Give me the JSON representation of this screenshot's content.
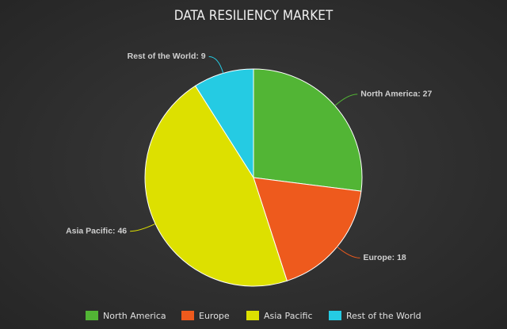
{
  "chart_data": {
    "type": "pie",
    "title": "DATA RESILIENCY MARKET",
    "categories": [
      "North America",
      "Europe",
      "Asia Pacific",
      "Rest of the World"
    ],
    "values": [
      27,
      18,
      46,
      9
    ],
    "value_labels": [
      "North America: 27",
      "Europe: 18",
      "Asia Pacific: 46",
      "Rest of the World: 9"
    ],
    "colors": [
      "#52b535",
      "#ee5a1d",
      "#dde000",
      "#25cbe3"
    ]
  }
}
